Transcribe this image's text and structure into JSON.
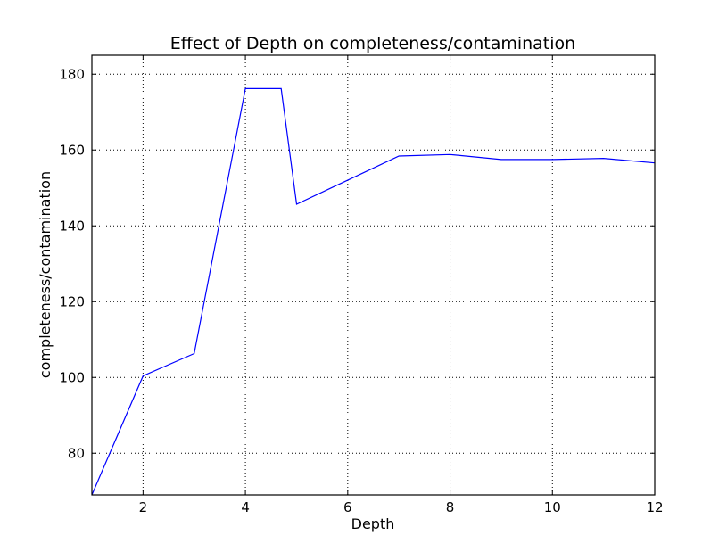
{
  "chart_data": {
    "type": "line",
    "title": "Effect of Depth on completeness/contamination",
    "xlabel": "Depth",
    "ylabel": "completeness/contamination",
    "xlim": [
      1,
      12
    ],
    "ylim": [
      69,
      185
    ],
    "xticks": [
      2,
      4,
      6,
      8,
      10,
      12
    ],
    "yticks": [
      80,
      100,
      120,
      140,
      160,
      180
    ],
    "grid": true,
    "series": [
      {
        "color": "#0000ff",
        "x": [
          1,
          2,
          3,
          4,
          4.7,
          5,
          7,
          8,
          9,
          10,
          11,
          12
        ],
        "y": [
          69,
          100.4,
          106.3,
          176.2,
          176.2,
          145.7,
          158.4,
          158.8,
          157.5,
          157.5,
          157.8,
          156.6
        ]
      }
    ]
  }
}
